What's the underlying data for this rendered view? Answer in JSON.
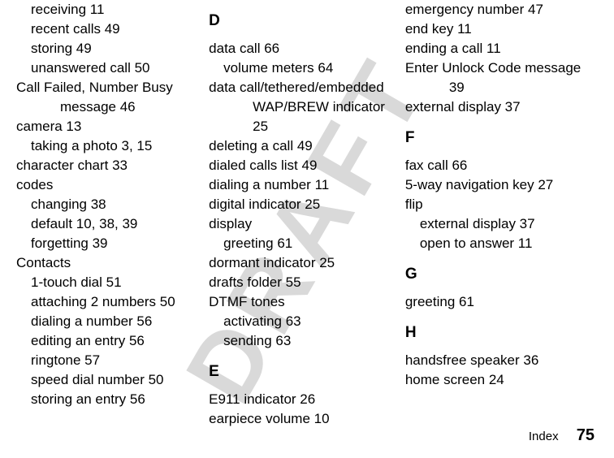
{
  "watermark": "DRAFT",
  "columns": [
    {
      "items": [
        {
          "cls": "l1",
          "text": "receiving  11"
        },
        {
          "cls": "l1",
          "text": "recent calls  49"
        },
        {
          "cls": "l1",
          "text": "storing  49"
        },
        {
          "cls": "l1",
          "text": "unanswered call  50"
        },
        {
          "cls": "hang1",
          "text": "Call Failed, Number Busy message  46"
        },
        {
          "cls": "l0",
          "text": "camera  13"
        },
        {
          "cls": "l1",
          "text": "taking a photo  3, 15"
        },
        {
          "cls": "l0",
          "text": "character chart  33"
        },
        {
          "cls": "l0",
          "text": "codes"
        },
        {
          "cls": "l1",
          "text": "changing  38"
        },
        {
          "cls": "l1",
          "text": "default  10, 38, 39"
        },
        {
          "cls": "l1",
          "text": "forgetting  39"
        },
        {
          "cls": "l0",
          "text": "Contacts"
        },
        {
          "cls": "l1",
          "text": "1-touch dial  51"
        },
        {
          "cls": "l1",
          "text": "attaching 2 numbers  50"
        },
        {
          "cls": "l1",
          "text": "dialing a number  56"
        },
        {
          "cls": "l1",
          "text": "editing an entry  56"
        },
        {
          "cls": "l1",
          "text": "ringtone  57"
        },
        {
          "cls": "l1",
          "text": "speed dial number  50"
        },
        {
          "cls": "l1",
          "text": "storing an entry  56"
        }
      ]
    },
    {
      "items": [
        {
          "cls": "section-head",
          "text": "D"
        },
        {
          "cls": "l0",
          "text": "data call  66"
        },
        {
          "cls": "l1",
          "text": "volume meters  64"
        },
        {
          "cls": "hang1",
          "text": "data call/tethered/embedded WAP/BREW indicator  25"
        },
        {
          "cls": "l0",
          "text": "deleting a call  49"
        },
        {
          "cls": "l0",
          "text": "dialed calls list  49"
        },
        {
          "cls": "l0",
          "text": "dialing a number  11"
        },
        {
          "cls": "l0",
          "text": "digital indicator  25"
        },
        {
          "cls": "l0",
          "text": "display"
        },
        {
          "cls": "l1",
          "text": "greeting  61"
        },
        {
          "cls": "l0",
          "text": "dormant indicator  25"
        },
        {
          "cls": "l0",
          "text": "drafts folder  55"
        },
        {
          "cls": "l0",
          "text": "DTMF tones"
        },
        {
          "cls": "l1",
          "text": "activating  63"
        },
        {
          "cls": "l1",
          "text": "sending  63"
        },
        {
          "cls": "section-head",
          "text": "E"
        },
        {
          "cls": "l0",
          "text": "E911 indicator  26"
        },
        {
          "cls": "l0",
          "text": "earpiece volume  10"
        }
      ]
    },
    {
      "items": [
        {
          "cls": "l0",
          "text": "emergency number  47"
        },
        {
          "cls": "l0",
          "text": "end key  11"
        },
        {
          "cls": "l0",
          "text": "ending a call  11"
        },
        {
          "cls": "hang1",
          "text": "Enter Unlock Code message  39"
        },
        {
          "cls": "l0",
          "text": "external display  37"
        },
        {
          "cls": "section-head",
          "text": "F"
        },
        {
          "cls": "l0",
          "text": "fax call  66"
        },
        {
          "cls": "l0",
          "text": "5-way navigation key  27"
        },
        {
          "cls": "l0",
          "text": "flip"
        },
        {
          "cls": "l1",
          "text": "external display  37"
        },
        {
          "cls": "l1",
          "text": "open to answer  11"
        },
        {
          "cls": "section-head",
          "text": "G"
        },
        {
          "cls": "l0",
          "text": "greeting  61"
        },
        {
          "cls": "section-head",
          "text": "H"
        },
        {
          "cls": "l0",
          "text": "handsfree speaker  36"
        },
        {
          "cls": "l0",
          "text": "home screen  24"
        }
      ]
    }
  ],
  "footer": {
    "label": "Index",
    "page": "75"
  }
}
